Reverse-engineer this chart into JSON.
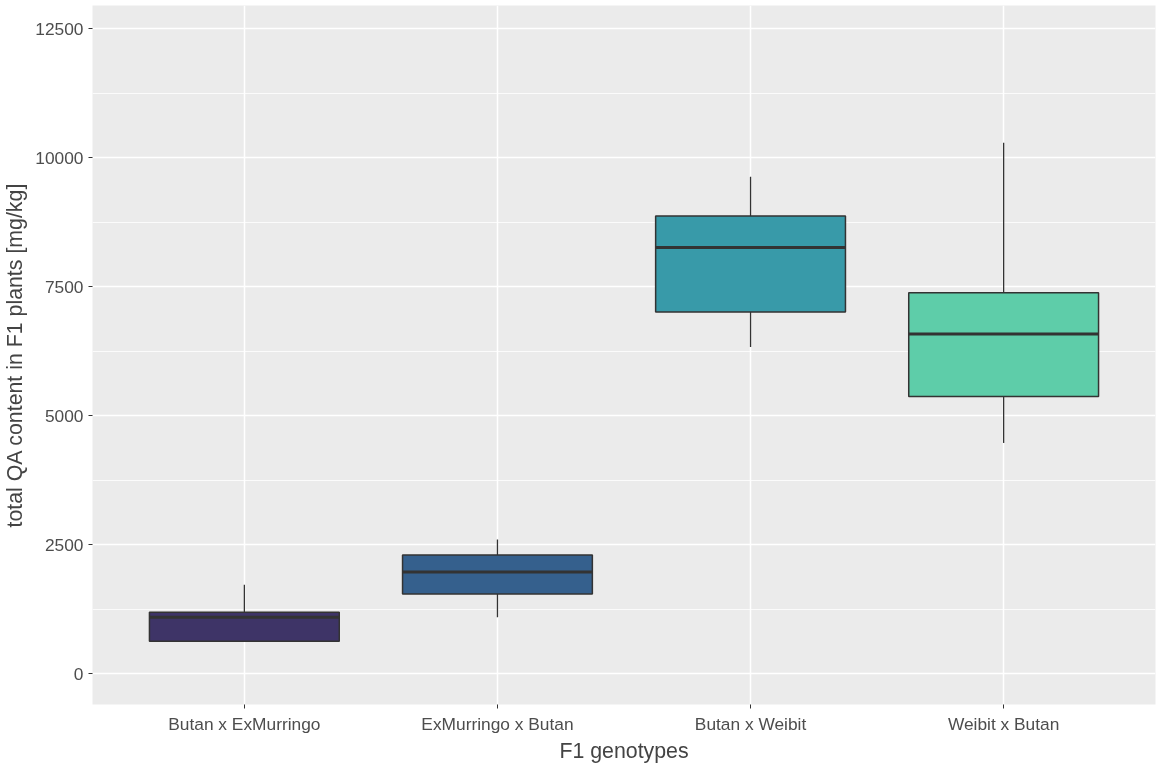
{
  "chart_data": {
    "type": "box",
    "xlabel": "F1 genotypes",
    "ylabel": "total QA content in F1 plants [mg/kg]",
    "categories": [
      "Butan x ExMurringo",
      "ExMurringo x Butan",
      "Butan x Weibit",
      "Weibit x Butan"
    ],
    "colors": [
      "#3e3467",
      "#35608d",
      "#389aa9",
      "#5ecda9"
    ],
    "boxes": [
      {
        "low": 620,
        "q1": 625,
        "median": 1090,
        "q3": 1190,
        "high": 1720
      },
      {
        "low": 1090,
        "q1": 1540,
        "median": 1970,
        "q3": 2300,
        "high": 2600
      },
      {
        "low": 6330,
        "q1": 7010,
        "median": 8260,
        "q3": 8870,
        "high": 9630
      },
      {
        "low": 4470,
        "q1": 5370,
        "median": 6580,
        "q3": 7380,
        "high": 10290
      }
    ],
    "ylim": [
      -600,
      12950
    ],
    "yticks": [
      0,
      2500,
      5000,
      7500,
      10000,
      12500
    ],
    "grid": true
  }
}
